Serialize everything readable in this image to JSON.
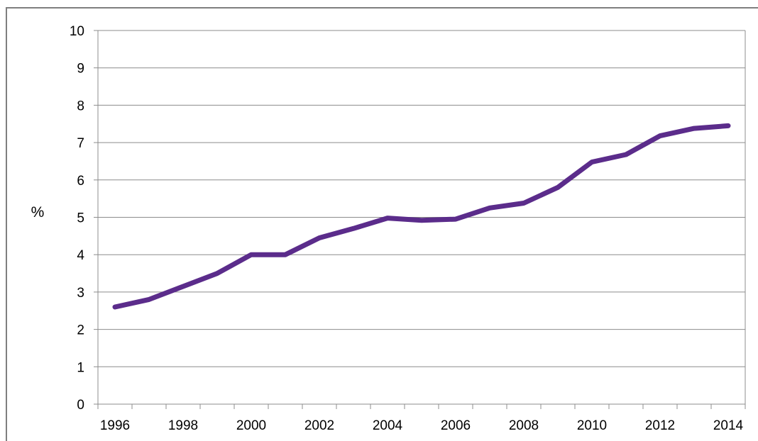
{
  "chart_data": {
    "type": "line",
    "title": "",
    "xlabel": "",
    "ylabel": "%",
    "xlim": [
      1996,
      2014
    ],
    "ylim": [
      0,
      10
    ],
    "y_ticks": [
      0,
      1,
      2,
      3,
      4,
      5,
      6,
      7,
      8,
      9,
      10
    ],
    "x_tick_labels": [
      "1996",
      "1998",
      "2000",
      "2002",
      "2004",
      "2006",
      "2008",
      "2010",
      "2012",
      "2014"
    ],
    "grid": "horizontal",
    "legend": "none",
    "series": [
      {
        "color": "#5b2c8b",
        "x": [
          1996,
          1997,
          1998,
          1999,
          2000,
          2001,
          2002,
          2003,
          2004,
          2005,
          2006,
          2007,
          2008,
          2009,
          2010,
          2011,
          2012,
          2013,
          2014
        ],
        "values": [
          2.6,
          2.8,
          3.15,
          3.5,
          4.0,
          4.0,
          4.45,
          4.7,
          4.98,
          4.92,
          4.95,
          5.25,
          5.38,
          5.8,
          6.48,
          6.68,
          7.18,
          7.38,
          7.45
        ]
      }
    ]
  }
}
